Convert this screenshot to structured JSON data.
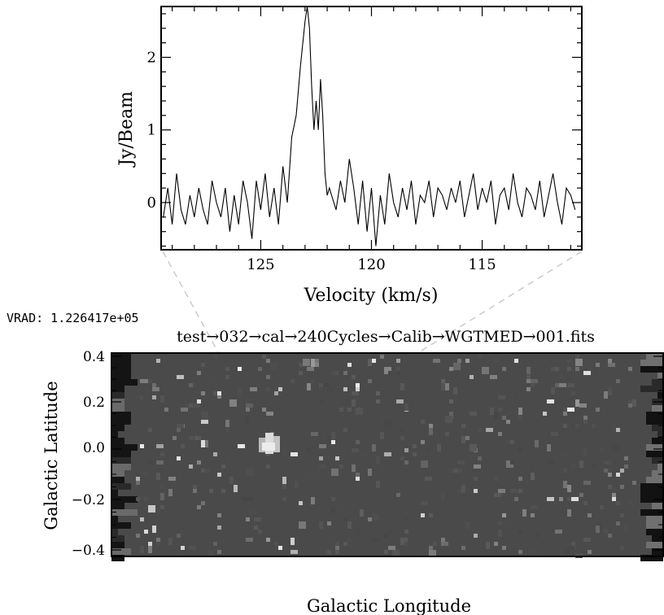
{
  "chart_data": [
    {
      "type": "line",
      "xlabel": "Velocity (km/s)",
      "ylabel": "Jy/Beam",
      "xlim": [
        129.5,
        110.5
      ],
      "ylim": [
        -0.65,
        2.7
      ],
      "x_ticks": [
        125,
        120,
        115
      ],
      "y_ticks": [
        0,
        1,
        2
      ],
      "grid": false,
      "x": [
        129.4,
        129.2,
        129.0,
        128.8,
        128.6,
        128.4,
        128.2,
        128.0,
        127.8,
        127.6,
        127.4,
        127.2,
        127.0,
        126.8,
        126.6,
        126.4,
        126.2,
        126.0,
        125.8,
        125.6,
        125.4,
        125.2,
        125.0,
        124.8,
        124.6,
        124.4,
        124.2,
        124.0,
        123.8,
        123.6,
        123.4,
        123.2,
        123.0,
        122.9,
        122.8,
        122.7,
        122.6,
        122.5,
        122.4,
        122.3,
        122.2,
        122.1,
        122.0,
        121.9,
        121.8,
        121.6,
        121.4,
        121.2,
        121.0,
        120.8,
        120.6,
        120.4,
        120.2,
        120.0,
        119.8,
        119.6,
        119.4,
        119.2,
        119.0,
        118.8,
        118.6,
        118.4,
        118.2,
        118.0,
        117.8,
        117.6,
        117.4,
        117.2,
        117.0,
        116.8,
        116.6,
        116.4,
        116.2,
        116.0,
        115.8,
        115.6,
        115.4,
        115.2,
        115.0,
        114.8,
        114.6,
        114.4,
        114.2,
        114.0,
        113.8,
        113.6,
        113.4,
        113.2,
        113.0,
        112.8,
        112.6,
        112.4,
        112.2,
        112.0,
        111.8,
        111.6,
        111.4,
        111.2,
        111.0,
        110.8
      ],
      "y": [
        -0.2,
        0.2,
        -0.3,
        0.4,
        -0.1,
        -0.3,
        0.1,
        -0.2,
        0.2,
        -0.1,
        -0.3,
        0.3,
        0.0,
        -0.2,
        0.2,
        -0.4,
        0.1,
        -0.3,
        0.3,
        0.0,
        -0.5,
        0.3,
        -0.1,
        0.4,
        -0.2,
        0.2,
        -0.3,
        0.5,
        0.0,
        0.9,
        1.2,
        1.9,
        2.5,
        2.7,
        2.4,
        1.6,
        1.0,
        1.4,
        1.0,
        1.7,
        1.2,
        0.4,
        0.1,
        0.2,
        0.1,
        -0.1,
        0.3,
        0.0,
        0.6,
        0.2,
        -0.3,
        0.3,
        -0.4,
        0.2,
        -0.6,
        0.1,
        -0.3,
        0.4,
        0.0,
        -0.2,
        0.2,
        -0.1,
        0.3,
        -0.3,
        0.1,
        0.0,
        0.3,
        -0.2,
        0.2,
        0.1,
        -0.1,
        0.2,
        0.0,
        0.3,
        -0.2,
        0.1,
        0.4,
        -0.1,
        0.2,
        0.0,
        0.3,
        -0.3,
        0.1,
        0.2,
        -0.1,
        0.4,
        0.0,
        -0.2,
        0.2,
        0.1,
        -0.1,
        0.3,
        -0.2,
        0.1,
        0.4,
        0.0,
        -0.3,
        0.2,
        0.1,
        -0.1
      ]
    },
    {
      "type": "heatmap",
      "title": "test→032→cal→240Cycles→Calib→WGTMED→001.fits",
      "xlabel": "Galactic Longitude",
      "ylabel": "Galactic Latitude",
      "ylim": [
        -0.45,
        0.45
      ],
      "y_ticks": [
        "0.4",
        "0.2",
        "0.0",
        "−0.2",
        "−0.4"
      ],
      "colormap": "grayscale",
      "bright_source": {
        "latitude": 0.02
      }
    }
  ],
  "annotation": {
    "vrad_label": "VRAD: 1.226417e+05"
  }
}
